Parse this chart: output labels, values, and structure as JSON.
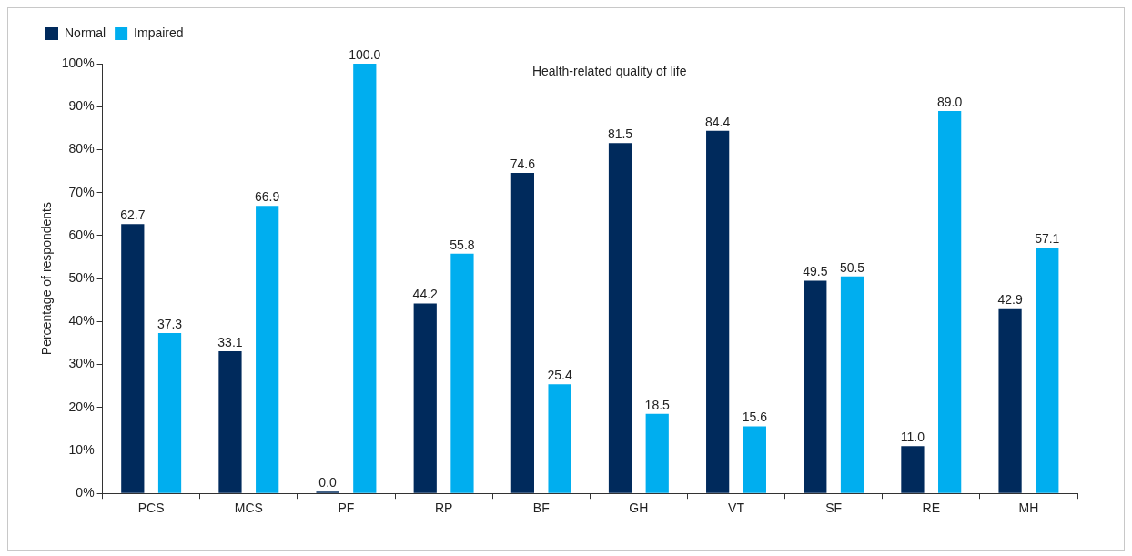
{
  "chart_data": {
    "type": "bar",
    "title": "Health-related quality of life",
    "ylabel": "Percentage of respondents",
    "categories": [
      "PCS",
      "MCS",
      "PF",
      "RP",
      "BF",
      "GH",
      "VT",
      "SF",
      "RE",
      "MH"
    ],
    "series": [
      {
        "name": "Normal",
        "color": "#002a5c",
        "values": [
          62.7,
          33.1,
          0.0,
          44.2,
          74.6,
          81.5,
          84.4,
          49.5,
          11.0,
          42.9
        ],
        "value_labels": [
          "62.7",
          "33.1",
          "0.0",
          "44.2",
          "74.6",
          "81.5",
          "84.4",
          "49.5",
          "11.0",
          "42.9"
        ]
      },
      {
        "name": "Impaired",
        "color": "#00aeef",
        "values": [
          37.3,
          66.9,
          100.0,
          55.8,
          25.4,
          18.5,
          15.6,
          50.5,
          89.0,
          57.1
        ],
        "value_labels": [
          "37.3",
          "66.9",
          "100.0",
          "55.8",
          "25.4",
          "18.5",
          "15.6",
          "50.5",
          "89.0",
          "57.1"
        ]
      }
    ],
    "ylim": [
      0,
      100
    ],
    "yticks": [
      {
        "value": 0,
        "label": "0%"
      },
      {
        "value": 10,
        "label": "10%"
      },
      {
        "value": 20,
        "label": "20%"
      },
      {
        "value": 30,
        "label": "30%"
      },
      {
        "value": 40,
        "label": "40%"
      },
      {
        "value": 50,
        "label": "50%"
      },
      {
        "value": 60,
        "label": "60%"
      },
      {
        "value": 70,
        "label": "70%"
      },
      {
        "value": 80,
        "label": "80%"
      },
      {
        "value": 90,
        "label": "90%"
      },
      {
        "value": 100,
        "label": "100%"
      }
    ],
    "grid": false,
    "legend": "top left"
  }
}
